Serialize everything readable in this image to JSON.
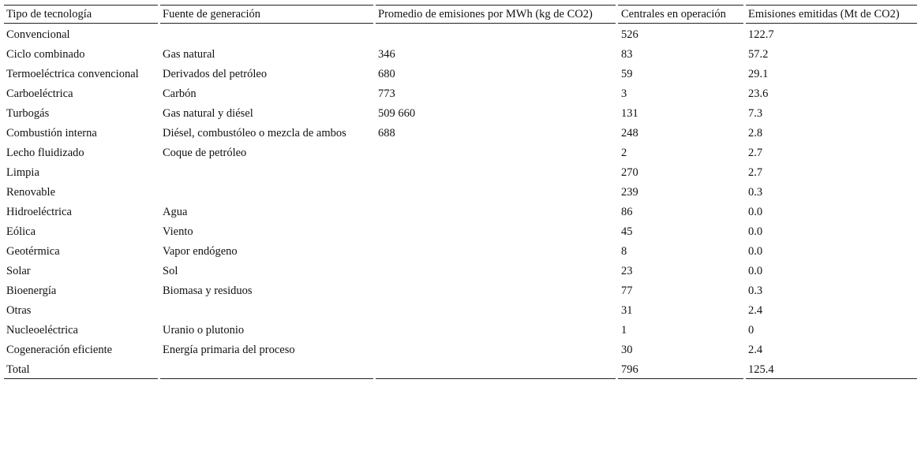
{
  "table": {
    "columns": [
      "Tipo de tecnología",
      "Fuente de generación",
      "Promedio de emisiones por MWh (kg de CO2)",
      "Centrales en operación",
      "Emisiones emitidas (Mt de CO2)"
    ],
    "rows": [
      [
        "Convencional",
        null,
        null,
        "526",
        "122.7"
      ],
      [
        "Ciclo combinado",
        "Gas natural",
        "346",
        "83",
        "57.2"
      ],
      [
        "Termoeléctrica convencional",
        "Derivados del petróleo",
        "680",
        "59",
        "29.1"
      ],
      [
        "Carboeléctrica",
        "Carbón",
        "773",
        "3",
        "23.6"
      ],
      [
        "Turbogás",
        "Gas natural y diésel",
        "509 660",
        "131",
        "7.3"
      ],
      [
        "Combustión interna",
        "Diésel, combustóleo o mezcla de ambos",
        "688",
        "248",
        "2.8"
      ],
      [
        "Lecho fluidizado",
        "Coque de petróleo",
        null,
        "2",
        "2.7"
      ],
      [
        "Limpia",
        null,
        null,
        "270",
        "2.7"
      ],
      [
        "Renovable",
        null,
        null,
        "239",
        "0.3"
      ],
      [
        "Hidroeléctrica",
        "Agua",
        null,
        "86",
        "0.0"
      ],
      [
        "Eólica",
        "Viento",
        null,
        "45",
        "0.0"
      ],
      [
        "Geotérmica",
        "Vapor endógeno",
        null,
        "8",
        "0.0"
      ],
      [
        "Solar",
        "Sol",
        null,
        "23",
        "0.0"
      ],
      [
        "Bioenergía",
        "Biomasa y residuos",
        null,
        "77",
        "0.3"
      ],
      [
        "Otras",
        null,
        null,
        "31",
        "2.4"
      ],
      [
        "Nucleoeléctrica",
        "Uranio o plutonio",
        null,
        "1",
        "0"
      ],
      [
        "Cogeneración eficiente",
        "Energía primaria del proceso",
        null,
        "30",
        "2.4"
      ],
      [
        "Total",
        null,
        null,
        "796",
        "125.4"
      ]
    ]
  }
}
